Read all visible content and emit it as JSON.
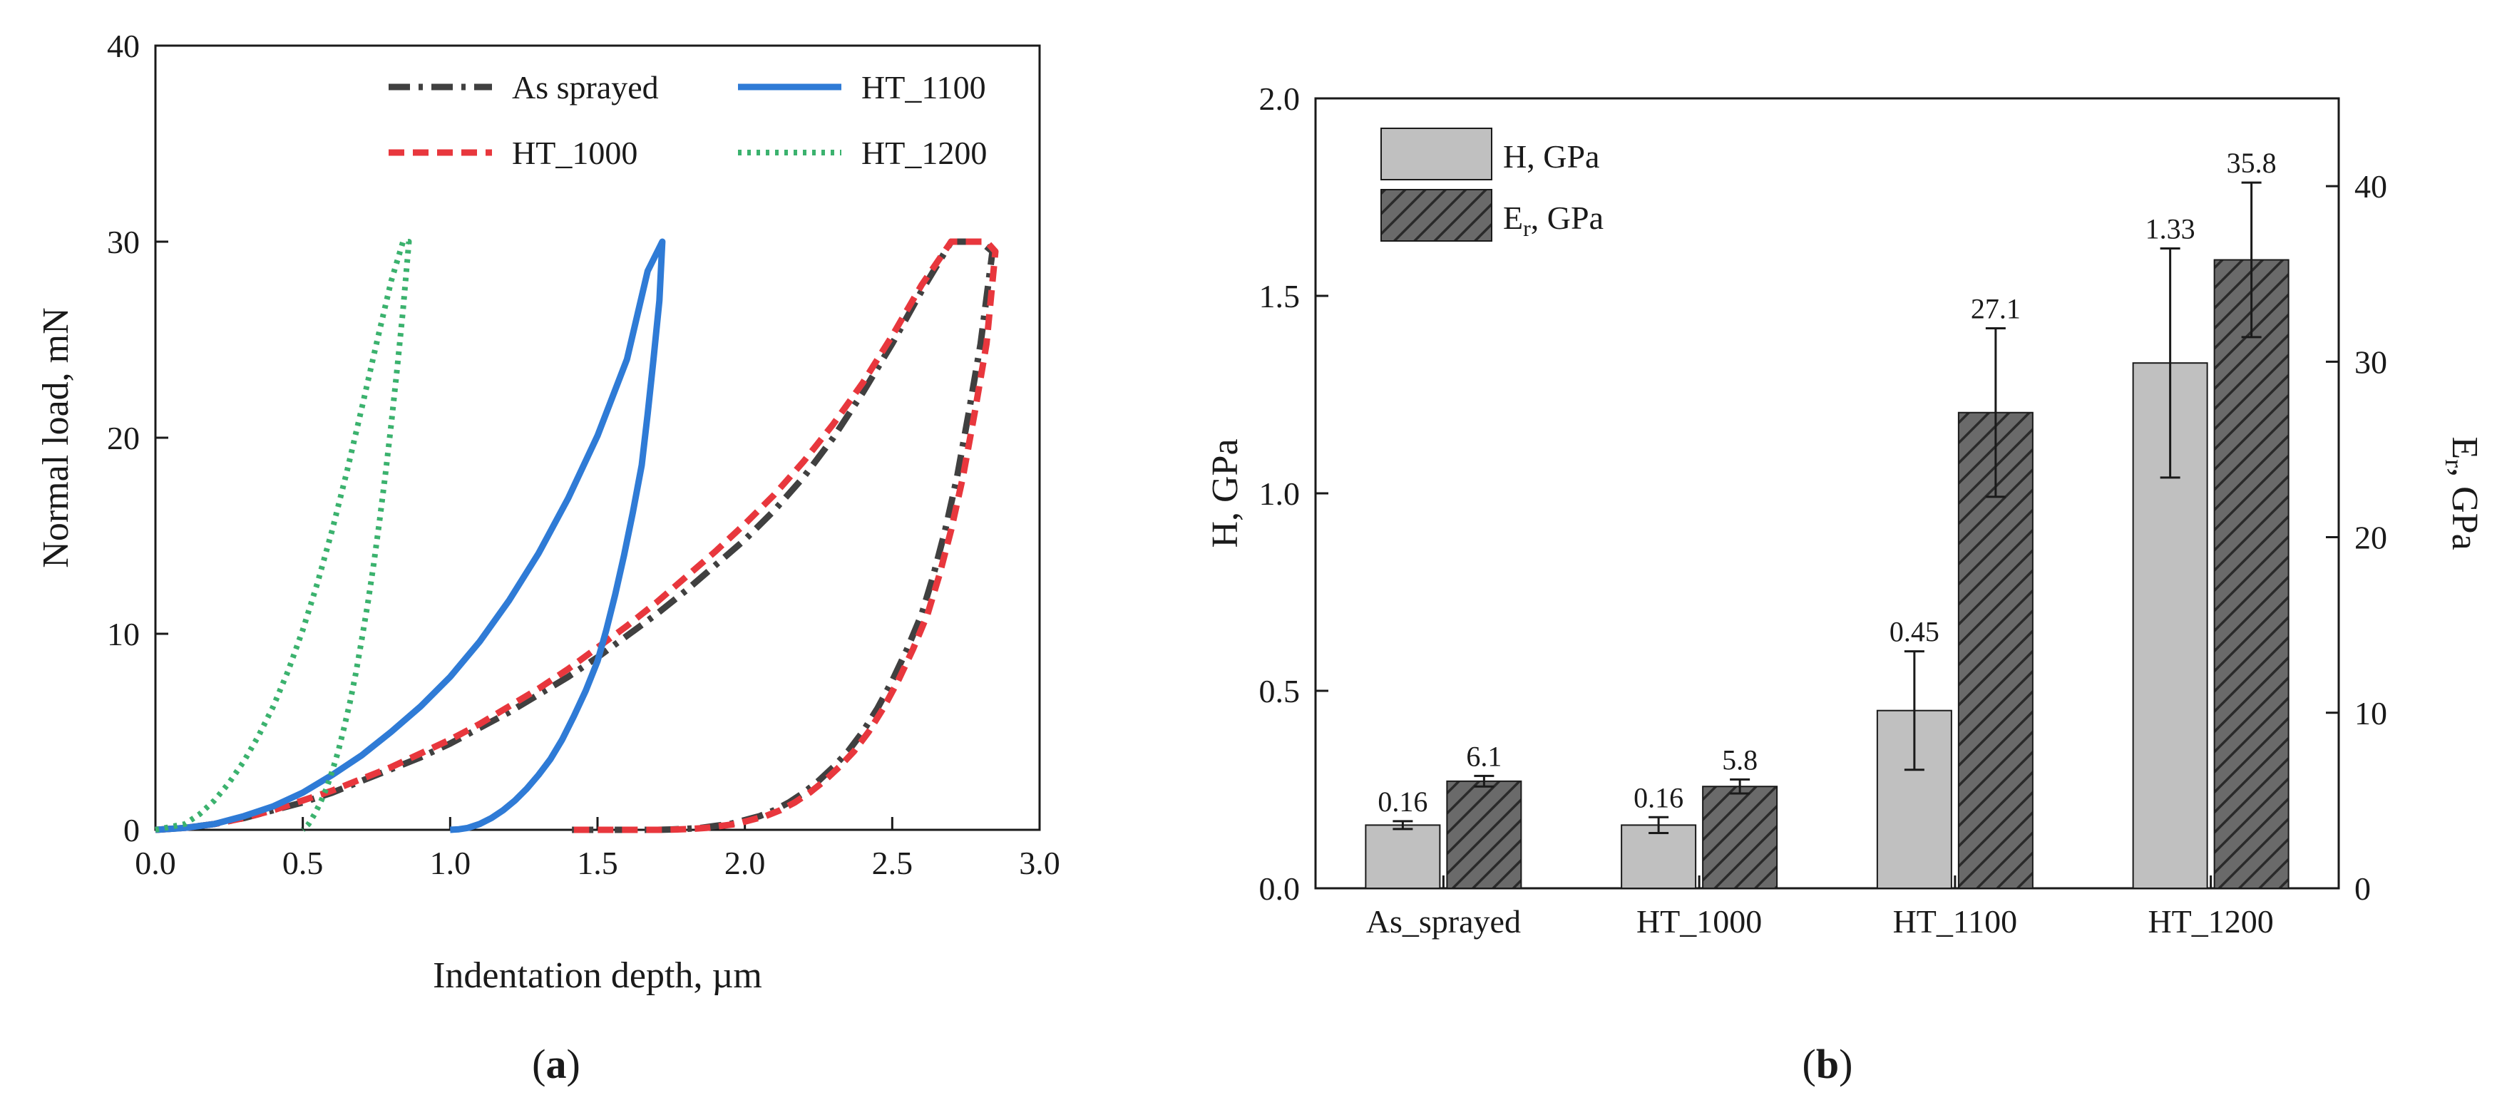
{
  "panels": {
    "a": {
      "label_open": "(",
      "label_letter": "a",
      "label_close": ")"
    },
    "b": {
      "label_open": "(",
      "label_letter": "b",
      "label_close": ")"
    }
  },
  "chart_data": [
    {
      "type": "line",
      "id": "a",
      "title": "",
      "xlabel": "Indentation depth, µm",
      "ylabel": "Normal load, mN",
      "xlim": [
        0,
        3
      ],
      "ylim": [
        0,
        40
      ],
      "xticks": [
        "0.0",
        "0.5",
        "1.0",
        "1.5",
        "2.0",
        "2.5",
        "3.0"
      ],
      "yticks": [
        "0",
        "10",
        "20",
        "30",
        "40"
      ],
      "legend_position": "top-right",
      "series": [
        {
          "name": "As sprayed",
          "color": "#404040",
          "style": "dashdot",
          "x": [
            0.0,
            0.1,
            0.2,
            0.3,
            0.4,
            0.5,
            0.6,
            0.7,
            0.8,
            0.9,
            1.0,
            1.1,
            1.2,
            1.3,
            1.4,
            1.5,
            1.6,
            1.7,
            1.8,
            1.9,
            2.0,
            2.1,
            2.2,
            2.3,
            2.4,
            2.5,
            2.6,
            2.7,
            2.8,
            2.84,
            2.8,
            2.76,
            2.72,
            2.68,
            2.64,
            2.6,
            2.55,
            2.5,
            2.45,
            2.4,
            2.35,
            2.3,
            2.25,
            2.2,
            2.15,
            2.1,
            2.05,
            2.0,
            1.95,
            1.9,
            1.85,
            1.8,
            1.75,
            1.7,
            1.65,
            1.6,
            1.55,
            1.5,
            1.45,
            1.4
          ],
          "y": [
            0.0,
            0.1,
            0.3,
            0.6,
            1.0,
            1.4,
            1.9,
            2.5,
            3.1,
            3.7,
            4.4,
            5.2,
            6.0,
            6.9,
            7.8,
            8.8,
            9.9,
            11.0,
            12.2,
            13.5,
            14.8,
            16.3,
            18.0,
            20.0,
            22.3,
            24.8,
            27.5,
            30.0,
            30.0,
            29.5,
            24.8,
            21.3,
            18.0,
            15.3,
            13.0,
            11.0,
            9.2,
            7.6,
            6.2,
            5.0,
            4.0,
            3.2,
            2.5,
            1.9,
            1.4,
            1.0,
            0.7,
            0.5,
            0.3,
            0.2,
            0.1,
            0.05,
            0.02,
            0.0,
            0.0,
            0.0,
            0.0,
            0.0,
            0.0,
            0.0
          ]
        },
        {
          "name": "HT_1000",
          "color": "#e8373d",
          "style": "dashed",
          "x": [
            0.0,
            0.1,
            0.2,
            0.3,
            0.4,
            0.5,
            0.6,
            0.7,
            0.8,
            0.9,
            1.0,
            1.1,
            1.2,
            1.3,
            1.4,
            1.5,
            1.6,
            1.7,
            1.8,
            1.9,
            2.0,
            2.1,
            2.2,
            2.3,
            2.4,
            2.5,
            2.6,
            2.7,
            2.82,
            2.85,
            2.82,
            2.78,
            2.74,
            2.7,
            2.66,
            2.62,
            2.57,
            2.52,
            2.47,
            2.42,
            2.37,
            2.32,
            2.27,
            2.22,
            2.17,
            2.12,
            2.07,
            2.02,
            1.97,
            1.92,
            1.87,
            1.82,
            1.77,
            1.72,
            1.67,
            1.62,
            1.57,
            1.52,
            1.47,
            1.42
          ],
          "y": [
            0.0,
            0.1,
            0.3,
            0.6,
            1.0,
            1.5,
            2.0,
            2.6,
            3.2,
            3.9,
            4.6,
            5.4,
            6.3,
            7.2,
            8.2,
            9.3,
            10.4,
            11.6,
            12.9,
            14.2,
            15.6,
            17.1,
            18.8,
            20.7,
            22.8,
            25.2,
            27.8,
            30.0,
            30.0,
            29.5,
            24.8,
            21.3,
            18.0,
            15.3,
            13.0,
            11.0,
            9.2,
            7.6,
            6.2,
            5.0,
            4.0,
            3.2,
            2.5,
            1.9,
            1.4,
            1.0,
            0.7,
            0.5,
            0.3,
            0.2,
            0.1,
            0.05,
            0.02,
            0.0,
            0.0,
            0.0,
            0.0,
            0.0,
            0.0,
            0.0
          ]
        },
        {
          "name": "HT_1100",
          "color": "#2f7bd6",
          "style": "solid",
          "x": [
            0.0,
            0.1,
            0.2,
            0.3,
            0.4,
            0.5,
            0.6,
            0.7,
            0.8,
            0.9,
            1.0,
            1.1,
            1.2,
            1.3,
            1.4,
            1.5,
            1.6,
            1.67,
            1.72,
            1.72,
            1.71,
            1.69,
            1.67,
            1.65,
            1.62,
            1.59,
            1.56,
            1.53,
            1.5,
            1.46,
            1.42,
            1.38,
            1.34,
            1.3,
            1.26,
            1.22,
            1.18,
            1.14,
            1.1,
            1.06,
            1.03,
            1.0
          ],
          "y": [
            0.0,
            0.1,
            0.3,
            0.7,
            1.2,
            1.9,
            2.8,
            3.8,
            5.0,
            6.3,
            7.8,
            9.6,
            11.7,
            14.1,
            16.9,
            20.1,
            24.0,
            28.5,
            30.0,
            30.0,
            27.0,
            24.0,
            21.2,
            18.6,
            16.2,
            14.0,
            12.0,
            10.2,
            8.6,
            7.1,
            5.8,
            4.6,
            3.6,
            2.8,
            2.1,
            1.5,
            1.0,
            0.6,
            0.3,
            0.1,
            0.03,
            0.0
          ]
        },
        {
          "name": "HT_1200",
          "color": "#3bb26e",
          "style": "dotted",
          "x": [
            0.0,
            0.1,
            0.15,
            0.2,
            0.25,
            0.3,
            0.35,
            0.4,
            0.45,
            0.5,
            0.55,
            0.6,
            0.65,
            0.7,
            0.75,
            0.8,
            0.84,
            0.86,
            0.84,
            0.82,
            0.8,
            0.78,
            0.76,
            0.74,
            0.72,
            0.7,
            0.68,
            0.66,
            0.64,
            0.62,
            0.6,
            0.58,
            0.56,
            0.54,
            0.52,
            0.5
          ],
          "y": [
            0.0,
            0.3,
            0.8,
            1.5,
            2.4,
            3.5,
            4.8,
            6.3,
            8.1,
            10.2,
            12.6,
            15.3,
            18.3,
            21.5,
            24.8,
            28.0,
            30.0,
            30.0,
            26.5,
            23.5,
            20.7,
            18.1,
            15.7,
            13.5,
            11.5,
            9.7,
            8.0,
            6.5,
            5.2,
            4.0,
            3.0,
            2.1,
            1.4,
            0.8,
            0.3,
            0.0
          ]
        }
      ]
    },
    {
      "type": "bar",
      "id": "b",
      "title": "",
      "xlabel": "",
      "ylabel": "H, GPa",
      "ylabel_right_main": "E",
      "ylabel_right_sub": "r",
      "ylabel_right_tail": ", GPa",
      "ylim": [
        0,
        2
      ],
      "ylim_right": [
        0,
        45
      ],
      "yticks": [
        "0.0",
        "0.5",
        "1.0",
        "1.5",
        "2.0"
      ],
      "yticks_right": [
        "0",
        "10",
        "20",
        "30",
        "40"
      ],
      "categories": [
        "As_sprayed",
        "HT_1000",
        "HT_1100",
        "HT_1200"
      ],
      "legend_position": "top-left",
      "series": [
        {
          "name": "H, GPa",
          "axis": "left",
          "color": "#c0c0c0",
          "pattern": "solid",
          "values": [
            0.16,
            0.16,
            0.45,
            1.33
          ],
          "errors": [
            0.01,
            0.02,
            0.15,
            0.29
          ],
          "labels": [
            "0.16",
            "0.16",
            "0.45",
            "1.33"
          ]
        },
        {
          "name": "Er, GPa",
          "legend_main": "E",
          "legend_sub": "r",
          "legend_tail": ", GPa",
          "axis": "right",
          "color": "#5a5a5a",
          "pattern": "hatched",
          "values": [
            6.1,
            5.8,
            27.1,
            35.8
          ],
          "errors": [
            0.3,
            0.4,
            4.8,
            4.4
          ],
          "labels": [
            "6.1",
            "5.8",
            "27.1",
            "35.8"
          ]
        }
      ]
    }
  ]
}
